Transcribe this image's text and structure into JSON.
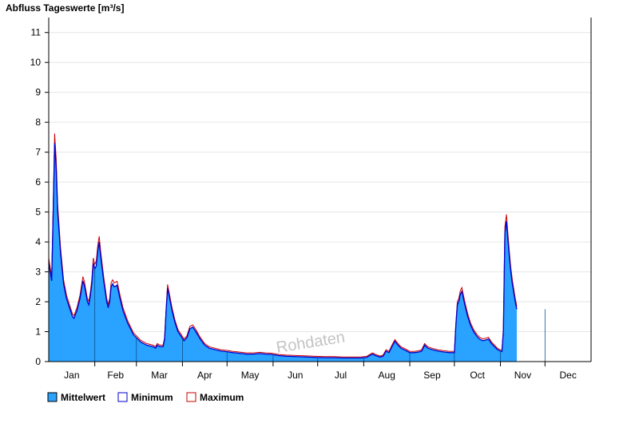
{
  "chart_data": {
    "type": "area",
    "title": "Abfluss Tageswerte [m³/s]",
    "watermark": "Rohdaten",
    "ylim": [
      0,
      11.5
    ],
    "yticks": [
      0,
      1,
      2,
      3,
      4,
      5,
      6,
      7,
      8,
      9,
      10,
      11
    ],
    "ytick_labels": [
      "0",
      "1",
      "2",
      "3",
      "4",
      "5",
      "6",
      "7",
      "8",
      "9",
      "10",
      "11"
    ],
    "xlim": [
      0,
      365
    ],
    "months": [
      "Jan",
      "Feb",
      "Mar",
      "Apr",
      "May",
      "Jun",
      "Jul",
      "Aug",
      "Sep",
      "Oct",
      "Nov",
      "Dec"
    ],
    "grid": true,
    "legend_position": "bottom-left",
    "colors": {
      "mean": "#2aa2ff",
      "minimum": "#0000cc",
      "maximum": "#cc0000",
      "grid": "#e6e6e6"
    },
    "series": [
      {
        "name": "Mittelwert",
        "points": [
          [
            0,
            3.3
          ],
          [
            2,
            2.7
          ],
          [
            3,
            5
          ],
          [
            4,
            7.3
          ],
          [
            5,
            6.5
          ],
          [
            6,
            5
          ],
          [
            8,
            3.6
          ],
          [
            10,
            2.6
          ],
          [
            12,
            2.1
          ],
          [
            14,
            1.8
          ],
          [
            16,
            1.5
          ],
          [
            17,
            1.45
          ],
          [
            19,
            1.7
          ],
          [
            21,
            2.1
          ],
          [
            23,
            2.7
          ],
          [
            24,
            2.55
          ],
          [
            26,
            2.0
          ],
          [
            27,
            1.9
          ],
          [
            28,
            2.2
          ],
          [
            29,
            2.6
          ],
          [
            30,
            3.3
          ],
          [
            31,
            3.1
          ],
          [
            32,
            3.2
          ],
          [
            33,
            3.7
          ],
          [
            34,
            4.0
          ],
          [
            35,
            3.5
          ],
          [
            37,
            2.7
          ],
          [
            39,
            2.0
          ],
          [
            40,
            1.8
          ],
          [
            41,
            2.0
          ],
          [
            42,
            2.5
          ],
          [
            43,
            2.6
          ],
          [
            44,
            2.5
          ],
          [
            46,
            2.55
          ],
          [
            48,
            2.1
          ],
          [
            50,
            1.7
          ],
          [
            53,
            1.3
          ],
          [
            57,
            0.9
          ],
          [
            60,
            0.75
          ],
          [
            62,
            0.65
          ],
          [
            66,
            0.55
          ],
          [
            70,
            0.5
          ],
          [
            72,
            0.45
          ],
          [
            73,
            0.55
          ],
          [
            75,
            0.5
          ],
          [
            77,
            0.5
          ],
          [
            78,
            0.75
          ],
          [
            79,
            1.7
          ],
          [
            80,
            2.45
          ],
          [
            81,
            2.2
          ],
          [
            83,
            1.7
          ],
          [
            85,
            1.3
          ],
          [
            87,
            1.0
          ],
          [
            89,
            0.85
          ],
          [
            91,
            0.7
          ],
          [
            93,
            0.8
          ],
          [
            95,
            1.1
          ],
          [
            97,
            1.15
          ],
          [
            99,
            1.0
          ],
          [
            102,
            0.75
          ],
          [
            105,
            0.55
          ],
          [
            108,
            0.45
          ],
          [
            112,
            0.4
          ],
          [
            116,
            0.35
          ],
          [
            120,
            0.33
          ],
          [
            124,
            0.3
          ],
          [
            128,
            0.28
          ],
          [
            133,
            0.25
          ],
          [
            138,
            0.25
          ],
          [
            142,
            0.27
          ],
          [
            146,
            0.25
          ],
          [
            150,
            0.24
          ],
          [
            155,
            0.2
          ],
          [
            160,
            0.18
          ],
          [
            165,
            0.17
          ],
          [
            170,
            0.16
          ],
          [
            175,
            0.15
          ],
          [
            180,
            0.14
          ],
          [
            186,
            0.13
          ],
          [
            192,
            0.13
          ],
          [
            198,
            0.12
          ],
          [
            204,
            0.12
          ],
          [
            210,
            0.12
          ],
          [
            214,
            0.14
          ],
          [
            216,
            0.2
          ],
          [
            218,
            0.25
          ],
          [
            220,
            0.2
          ],
          [
            223,
            0.15
          ],
          [
            225,
            0.18
          ],
          [
            227,
            0.35
          ],
          [
            229,
            0.3
          ],
          [
            231,
            0.5
          ],
          [
            233,
            0.68
          ],
          [
            235,
            0.55
          ],
          [
            237,
            0.45
          ],
          [
            240,
            0.38
          ],
          [
            243,
            0.3
          ],
          [
            246,
            0.3
          ],
          [
            249,
            0.32
          ],
          [
            251,
            0.35
          ],
          [
            253,
            0.55
          ],
          [
            255,
            0.45
          ],
          [
            258,
            0.4
          ],
          [
            262,
            0.35
          ],
          [
            266,
            0.32
          ],
          [
            270,
            0.3
          ],
          [
            273,
            0.3
          ],
          [
            274,
            1.2
          ],
          [
            275,
            1.9
          ],
          [
            276,
            2.0
          ],
          [
            277,
            2.25
          ],
          [
            278,
            2.35
          ],
          [
            280,
            1.9
          ],
          [
            282,
            1.5
          ],
          [
            284,
            1.2
          ],
          [
            286,
            1.0
          ],
          [
            288,
            0.85
          ],
          [
            290,
            0.75
          ],
          [
            292,
            0.7
          ],
          [
            294,
            0.72
          ],
          [
            296,
            0.75
          ],
          [
            298,
            0.6
          ],
          [
            300,
            0.5
          ],
          [
            302,
            0.4
          ],
          [
            304,
            0.35
          ],
          [
            305,
            0.34
          ],
          [
            306,
            1.0
          ],
          [
            307,
            4.3
          ],
          [
            308,
            4.7
          ],
          [
            309,
            4.1
          ],
          [
            310,
            3.5
          ],
          [
            311,
            3.0
          ],
          [
            312,
            2.6
          ],
          [
            314,
            2.0
          ],
          [
            315,
            1.75
          ]
        ]
      },
      {
        "name": "Minimum"
      },
      {
        "name": "Maximum"
      }
    ]
  }
}
